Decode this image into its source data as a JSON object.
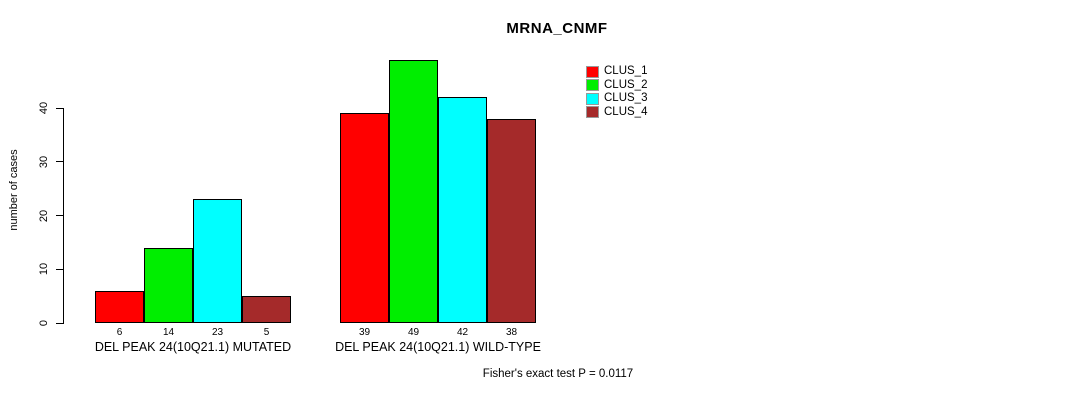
{
  "chart_data": {
    "type": "bar",
    "title": "MRNA_CNMF",
    "ylabel": "number of cases",
    "ylim": [
      0,
      40
    ],
    "yticks": [
      "0",
      "10",
      "20",
      "30",
      "40"
    ],
    "grid": false,
    "legend_position": "top-right-inside",
    "categories": [
      "DEL PEAK 24(10Q21.1) MUTATED",
      "DEL PEAK 24(10Q21.1) WILD-TYPE"
    ],
    "series": [
      {
        "name": "CLUS_1",
        "color": "#ff0000",
        "values": [
          6,
          39
        ]
      },
      {
        "name": "CLUS_2",
        "color": "#00ee00",
        "values": [
          14,
          49
        ]
      },
      {
        "name": "CLUS_3",
        "color": "#00ffff",
        "values": [
          23,
          42
        ]
      },
      {
        "name": "CLUS_4",
        "color": "#a52a2a",
        "values": [
          5,
          38
        ]
      }
    ],
    "bar_value_labels": [
      [
        6,
        14,
        23,
        5
      ],
      [
        39,
        49,
        42,
        38
      ]
    ],
    "annotation": "Fisher's exact test P = 0.0117"
  }
}
